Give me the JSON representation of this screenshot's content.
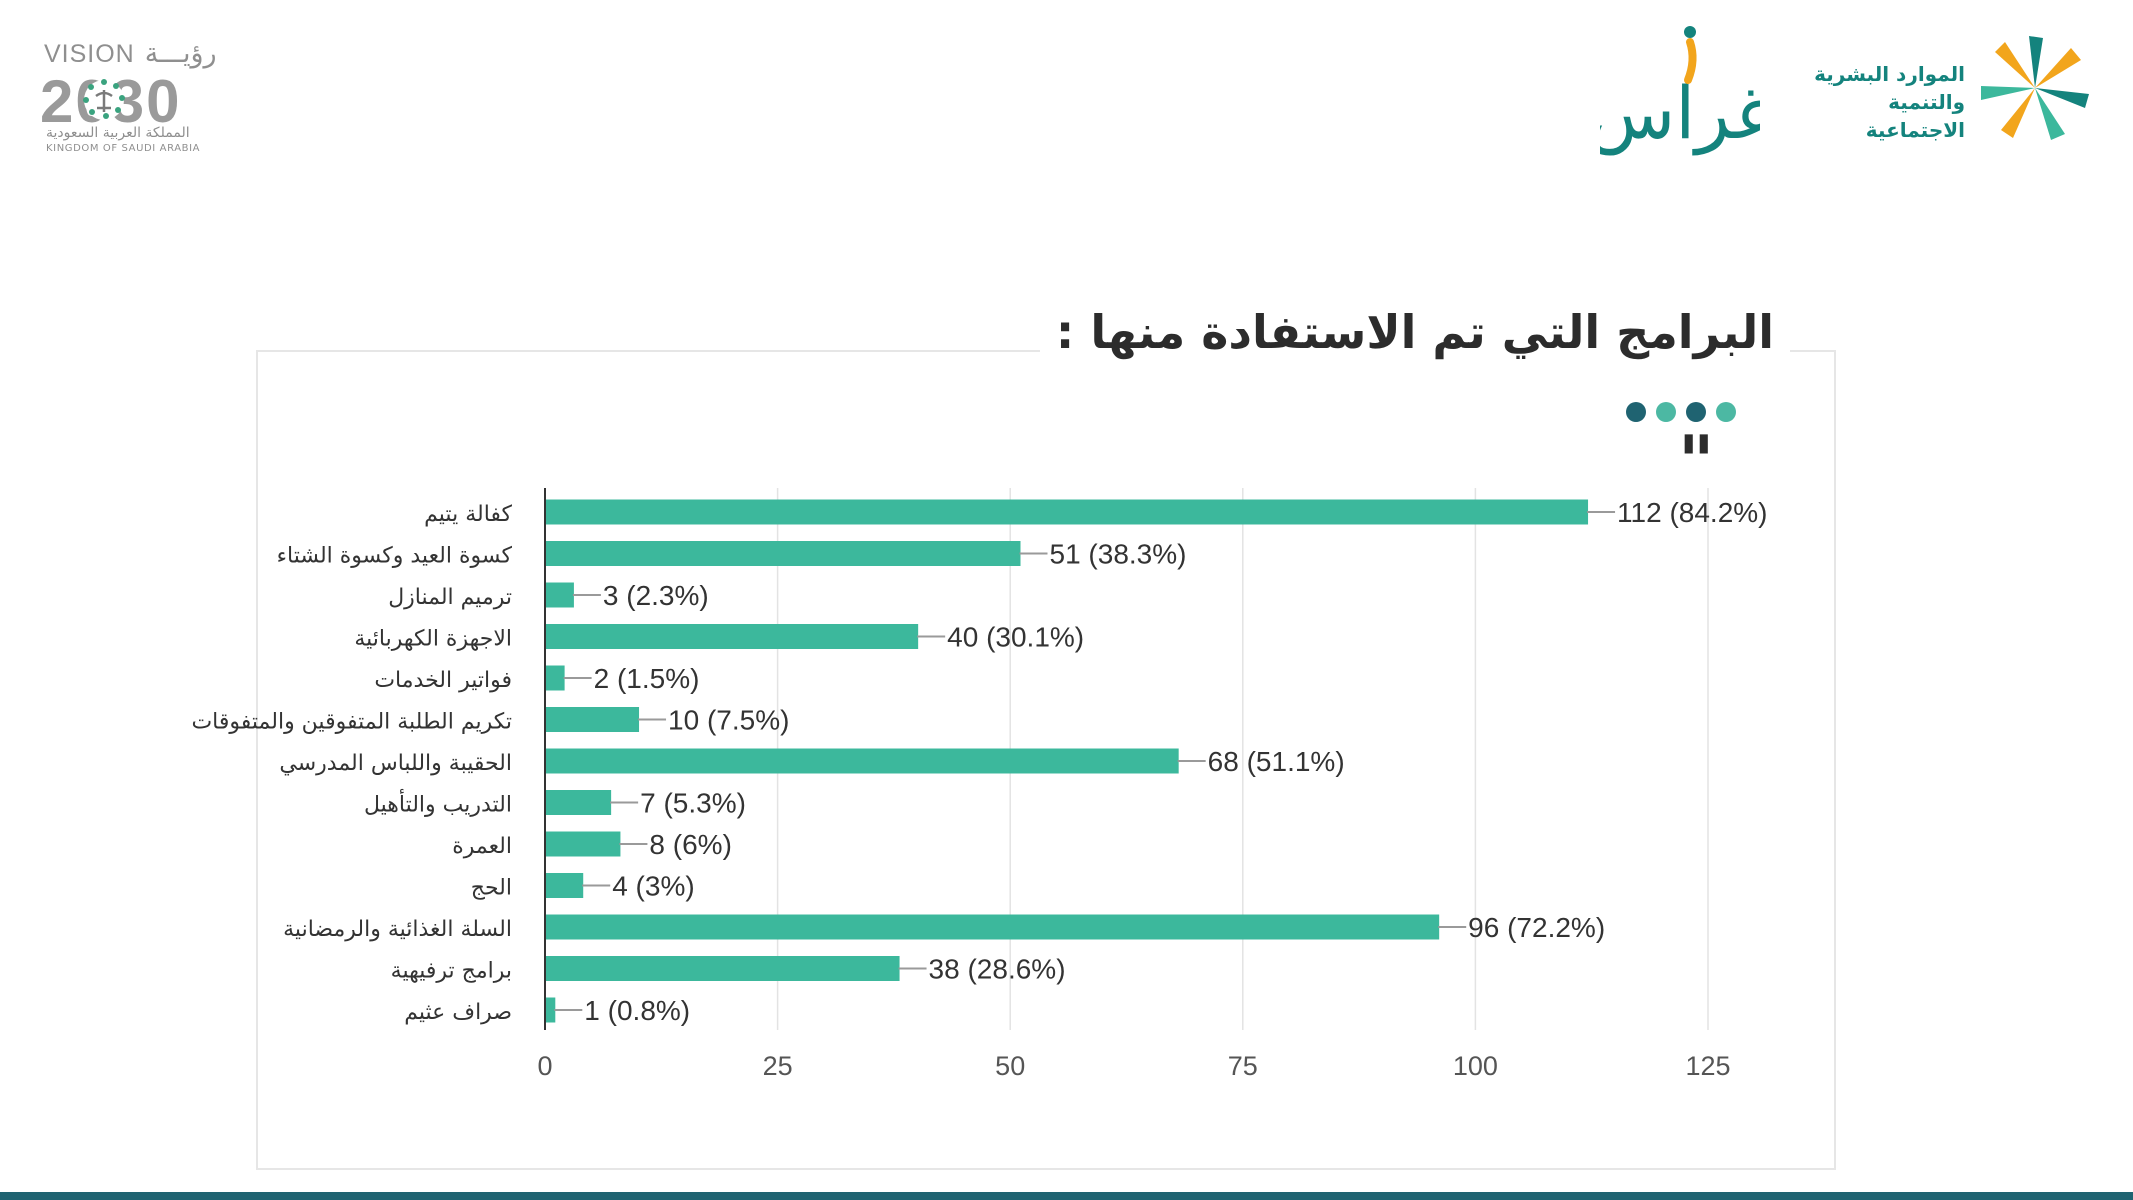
{
  "header": {
    "vision_logo": {
      "text_en": "VISION",
      "text_ar": "رؤيـــة",
      "year": "2030",
      "subtitle_ar": "المملكة العربية السعودية",
      "subtitle_en": "KINGDOM OF SAUDI ARABIA"
    },
    "ghiras_logo": {
      "text_ar": "غراس"
    },
    "ministry_logo": {
      "line1": "الموارد البشرية",
      "line2": "والتنمية الاجتماعية"
    }
  },
  "title": "البرامج التي تم الاستفادة منها :",
  "decor": {
    "dot_colors": [
      "#1f6371",
      "#4cb8a3",
      "#1f6371",
      "#4cb8a3"
    ],
    "quote_mark": "\""
  },
  "colors": {
    "bar": "#3cb89c",
    "bottom_bar": "#1f6371",
    "text": "#333333"
  },
  "chart_data": {
    "type": "bar",
    "orientation": "horizontal",
    "title": "",
    "xlabel": "",
    "ylabel": "",
    "xlim": [
      0,
      125
    ],
    "x_ticks": [
      "0",
      "25",
      "50",
      "75",
      "100",
      "125"
    ],
    "grid": true,
    "categories": [
      "كفالة يتيم",
      "كسوة العيد وكسوة الشتاء",
      "ترميم المنازل",
      "الاجهزة الكهربائية",
      "فواتير الخدمات",
      "تكريم الطلبة المتفوقين والمتفوقات",
      "الحقيبة واللباس المدرسي",
      "التدريب والتأهيل",
      "العمرة",
      "الحج",
      "السلة الغذائية والرمضانية",
      "برامج ترفيهية",
      "صراف عثيم"
    ],
    "values": [
      112,
      51,
      3,
      40,
      2,
      10,
      68,
      7,
      8,
      4,
      96,
      38,
      1
    ],
    "labels": [
      "112 (84.2%)",
      "51 (38.3%)",
      "3 (2.3%)",
      "40 (30.1%)",
      "2 (1.5%)",
      "10 (7.5%)",
      "68 (51.1%)",
      "7 (5.3%)",
      "8 (6%)",
      "4 (3%)",
      "96 (72.2%)",
      "38 (28.6%)",
      "1 (0.8%)"
    ]
  }
}
